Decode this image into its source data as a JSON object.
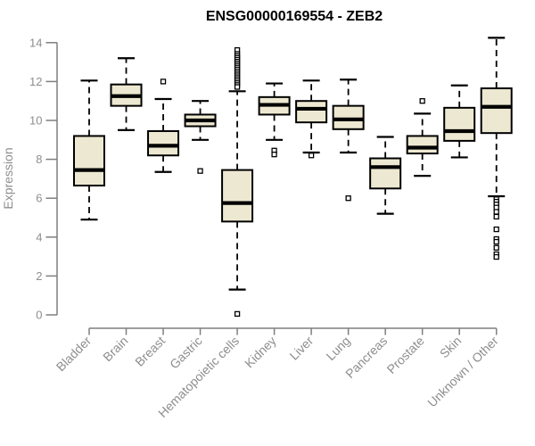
{
  "figure": {
    "title": "ENSG00000169554 - ZEB2"
  },
  "chart_data": {
    "type": "boxplot",
    "title": "ENSG00000169554 - ZEB2",
    "xlabel": "",
    "ylabel": "Expression",
    "ylim": [
      0,
      14.3
    ],
    "yticks": [
      0,
      2,
      4,
      6,
      8,
      10,
      12,
      14
    ],
    "grid": false,
    "legend": "none",
    "categories": [
      "Bladder",
      "Brain",
      "Breast",
      "Gastric",
      "Hematopoietic cells",
      "Kidney",
      "Liver",
      "Lung",
      "Pancreas",
      "Prostate",
      "Skin",
      "Unknown / Other"
    ],
    "boxes": [
      {
        "category": "Bladder",
        "whisker_low": 4.9,
        "q1": 6.65,
        "median": 7.45,
        "q3": 9.2,
        "whisker_high": 12.05,
        "outliers": []
      },
      {
        "category": "Brain",
        "whisker_low": 9.5,
        "q1": 10.75,
        "median": 11.25,
        "q3": 11.85,
        "whisker_high": 13.2,
        "outliers": []
      },
      {
        "category": "Breast",
        "whisker_low": 7.35,
        "q1": 8.2,
        "median": 8.7,
        "q3": 9.45,
        "whisker_high": 11.1,
        "outliers": [
          12.0
        ]
      },
      {
        "category": "Gastric",
        "whisker_low": 9.0,
        "q1": 9.7,
        "median": 10.0,
        "q3": 10.3,
        "whisker_high": 11.0,
        "outliers": [
          7.4
        ]
      },
      {
        "category": "Hematopoietic cells",
        "whisker_low": 1.3,
        "q1": 4.8,
        "median": 5.75,
        "q3": 7.45,
        "whisker_high": 11.5,
        "outliers": [
          13.62,
          13.42,
          13.32,
          13.22,
          13.12,
          13.02,
          12.92,
          12.82,
          12.72,
          12.62,
          12.52,
          12.42,
          12.32,
          12.22,
          12.12,
          12.02,
          11.92,
          11.82,
          11.72,
          0.05
        ]
      },
      {
        "category": "Kidney",
        "whisker_low": 9.0,
        "q1": 10.3,
        "median": 10.8,
        "q3": 11.2,
        "whisker_high": 11.9,
        "outliers": [
          8.45,
          8.25
        ]
      },
      {
        "category": "Liver",
        "whisker_low": 8.35,
        "q1": 9.9,
        "median": 10.6,
        "q3": 11.0,
        "whisker_high": 12.05,
        "outliers": [
          8.2
        ]
      },
      {
        "category": "Lung",
        "whisker_low": 8.35,
        "q1": 9.55,
        "median": 10.05,
        "q3": 10.75,
        "whisker_high": 12.1,
        "outliers": [
          6.0
        ]
      },
      {
        "category": "Pancreas",
        "whisker_low": 5.2,
        "q1": 6.5,
        "median": 7.6,
        "q3": 8.05,
        "whisker_high": 9.15,
        "outliers": []
      },
      {
        "category": "Prostate",
        "whisker_low": 7.15,
        "q1": 8.3,
        "median": 8.6,
        "q3": 9.2,
        "whisker_high": 10.35,
        "outliers": [
          11.0
        ]
      },
      {
        "category": "Skin",
        "whisker_low": 8.1,
        "q1": 8.95,
        "median": 9.45,
        "q3": 10.65,
        "whisker_high": 11.8,
        "outliers": []
      },
      {
        "category": "Unknown / Other",
        "whisker_low": 6.1,
        "q1": 9.35,
        "median": 10.7,
        "q3": 11.65,
        "whisker_high": 14.25,
        "outliers": [
          5.95,
          5.82,
          5.68,
          5.52,
          5.3,
          5.05,
          4.4,
          3.9,
          3.76,
          3.45,
          3.12,
          2.98
        ]
      }
    ],
    "colors": {
      "box_fill": "#ede8d1",
      "box_stroke": "#000000",
      "median": "#000000",
      "whisker": "#000000",
      "outlier_stroke": "#000000",
      "outlier_fill": "#ffffff",
      "axis": "#7f7f7f",
      "tick_label": "#8e8e8e",
      "title": "#000000",
      "background": "#ffffff"
    }
  }
}
